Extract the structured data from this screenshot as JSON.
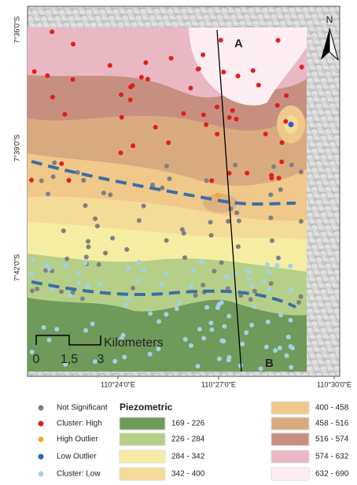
{
  "map": {
    "north_label": "N",
    "line_labels": [
      "A",
      "B"
    ],
    "lat_labels": [
      "7°36'0\"S",
      "7°39'0\"S",
      "7°42'0\"S"
    ],
    "lon_labels": [
      "110°24'0\"E",
      "110°27'0\"E",
      "110°30'0\"E"
    ],
    "scale": {
      "unit": "Kilometers",
      "ticks": [
        "0",
        "1,5",
        "3"
      ]
    }
  },
  "legend": {
    "points": [
      {
        "label": "Not Significant",
        "color": "#808080"
      },
      {
        "label": "Cluster: High",
        "color": "#e0201b"
      },
      {
        "label": "High Outlier",
        "color": "#f0a830"
      },
      {
        "label": "Low Outlier",
        "color": "#2f5fd0"
      },
      {
        "label": "Cluster: Low",
        "color": "#9fd3e6"
      }
    ],
    "title": "Piezometric",
    "classes": [
      {
        "label": "169 - 226",
        "color": "#6f9a5a"
      },
      {
        "label": "226 - 284",
        "color": "#b6cf88"
      },
      {
        "label": "284 - 342",
        "color": "#f4eda2"
      },
      {
        "label": "342 - 400",
        "color": "#f4db98"
      },
      {
        "label": "400 - 458",
        "color": "#efc88a"
      },
      {
        "label": "458 - 516",
        "color": "#d9aa80"
      },
      {
        "label": "516 - 574",
        "color": "#c78f80"
      },
      {
        "label": "574 - 632",
        "color": "#e9b8c3"
      },
      {
        "label": "632 - 690",
        "color": "#fdeef4"
      }
    ]
  }
}
